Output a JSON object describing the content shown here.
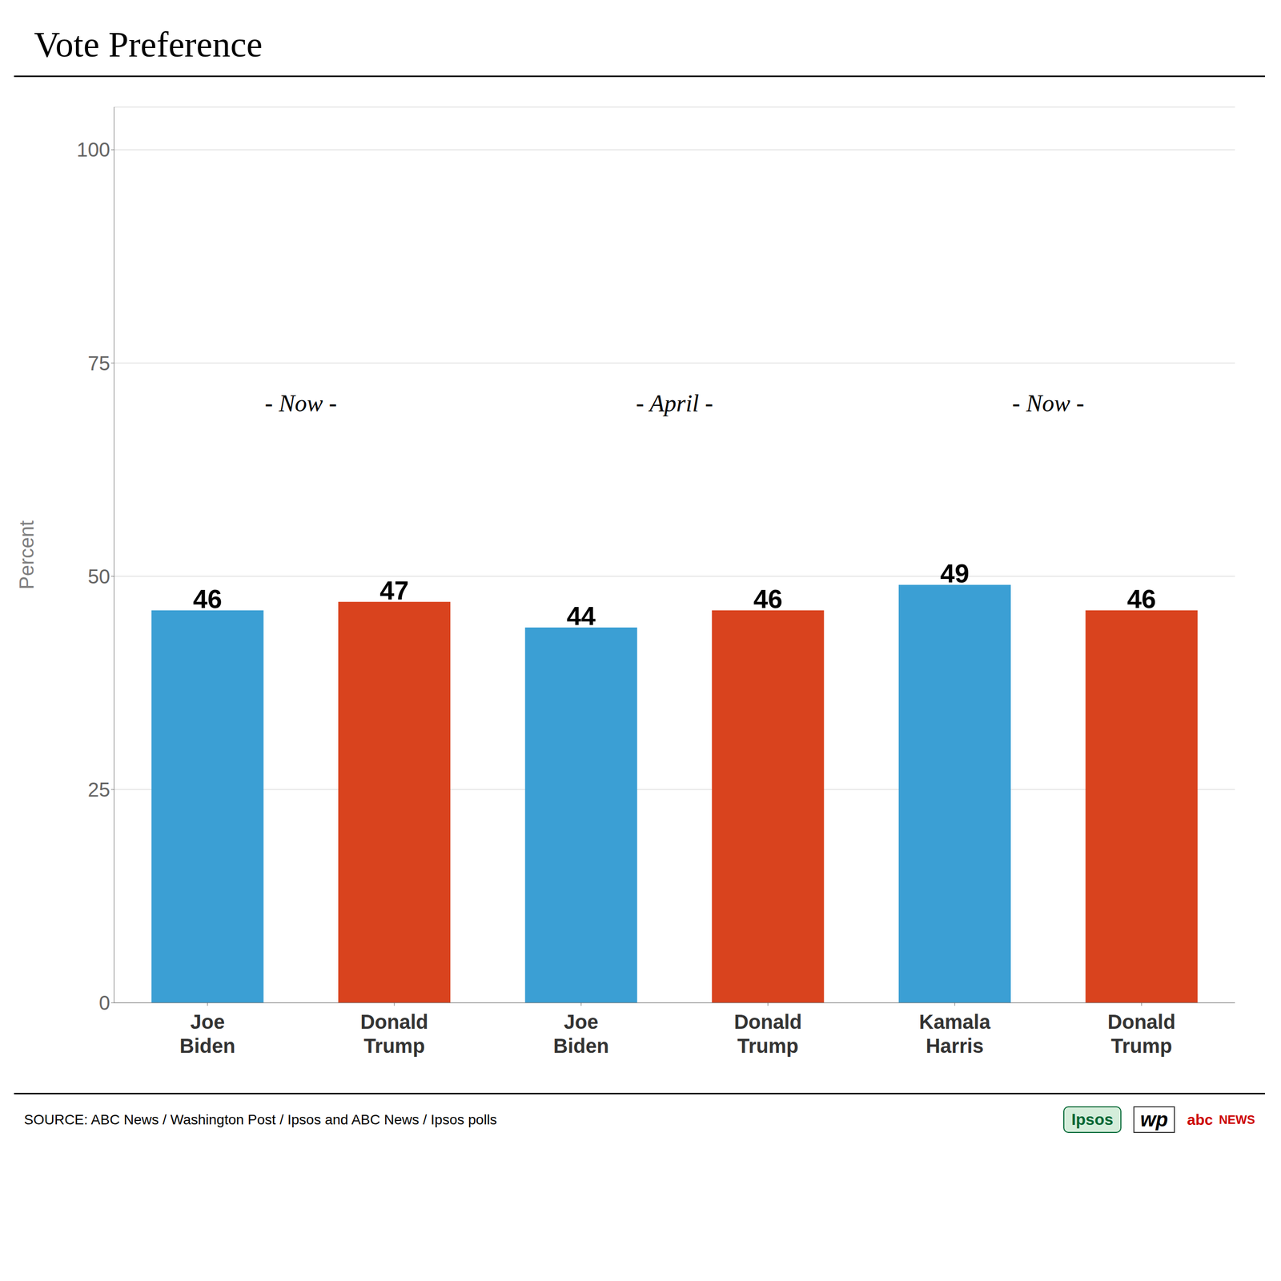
{
  "chart_data": {
    "type": "bar",
    "title": "Vote Preference",
    "ylabel": "Percent",
    "categories": [
      "Joe\nBiden",
      "Donald\nTrump",
      "Joe\nBiden",
      "Donald\nTrump",
      "Kamala\nHarris",
      "Donald\nTrump"
    ],
    "values": [
      46,
      47,
      44,
      46,
      49,
      46
    ],
    "colors": [
      "#3b9fd4",
      "#d9431e",
      "#3b9fd4",
      "#d9431e",
      "#3b9fd4",
      "#d9431e"
    ],
    "ylim": [
      0,
      105
    ],
    "yticks": [
      0,
      25,
      50,
      75,
      100
    ],
    "grid": true,
    "data_labels": true,
    "annotations": [
      {
        "text": "- Now -",
        "y": 70
      },
      {
        "text": "- April -",
        "y": 70
      },
      {
        "text": "- Now -",
        "y": 70
      },
      {
        "text": "SOURCE: ABC News / Washington Post / Ipsos and ABC News / Ipsos polls",
        "color": "#000000"
      },
      {
        "text": "Ipsos",
        "color": "#006633"
      },
      {
        "text": "wp",
        "color": "#000000"
      },
      {
        "text": "abc",
        "color": "#cc0000"
      },
      {
        "text": "NEWS",
        "color": "#cc0000"
      }
    ]
  }
}
